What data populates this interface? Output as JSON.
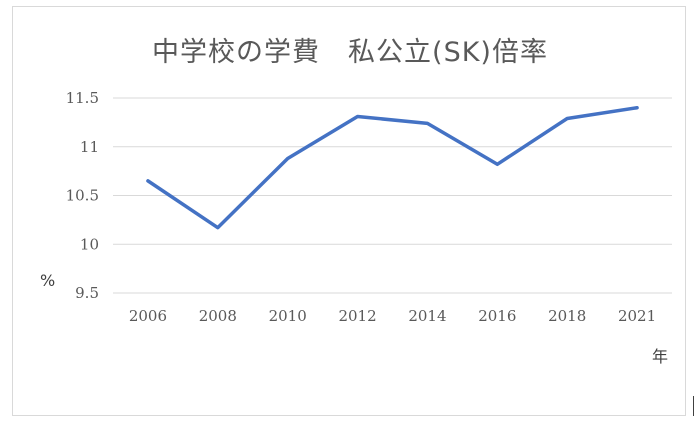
{
  "chart_data": {
    "type": "line",
    "title": "中学校の学費　私公立(SK)倍率",
    "ylabel": "%",
    "xlabel": "年",
    "categories": [
      "2006",
      "2008",
      "2010",
      "2012",
      "2014",
      "2016",
      "2018",
      "2021"
    ],
    "series": [
      {
        "values": [
          10.65,
          10.17,
          10.88,
          11.31,
          11.24,
          10.82,
          11.29,
          11.4
        ]
      }
    ],
    "ylim": [
      9.5,
      11.5
    ],
    "yticks": [
      9.5,
      10,
      10.5,
      11,
      11.5
    ],
    "ytick_labels": [
      "9.5",
      "10",
      "10.5",
      "11",
      "11.5"
    ],
    "grid": "horizontal",
    "legend": "none",
    "colors": {
      "line": "#4472c4",
      "grid": "#d9d9d9",
      "text": "#595959"
    }
  }
}
